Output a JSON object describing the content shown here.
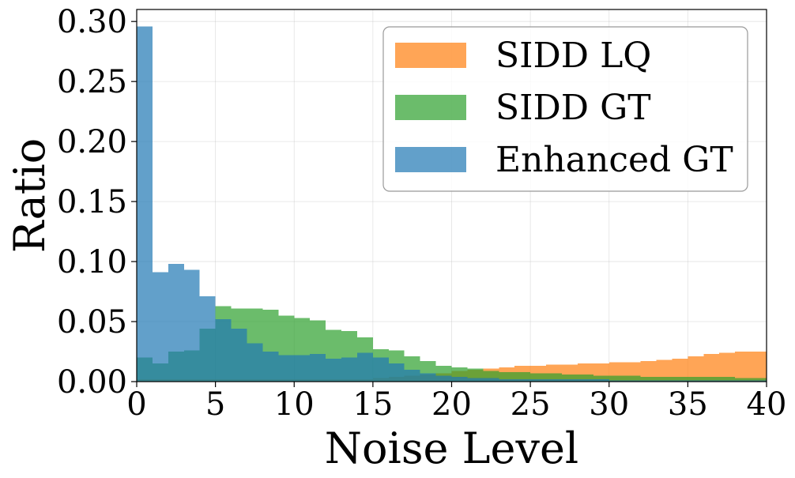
{
  "chart_data": {
    "type": "bar",
    "subtype": "overlapping-histogram",
    "title": "",
    "xlabel": "Noise Level",
    "ylabel": "Ratio",
    "xlim": [
      0,
      40
    ],
    "ylim": [
      0,
      0.31
    ],
    "xticks": [
      0,
      5,
      10,
      15,
      20,
      25,
      30,
      35,
      40
    ],
    "xtick_labels": [
      "0",
      "5",
      "10",
      "15",
      "20",
      "25",
      "30",
      "35",
      "40"
    ],
    "yticks": [
      0.0,
      0.05,
      0.1,
      0.15,
      0.2,
      0.25,
      0.3
    ],
    "ytick_labels": [
      "0.00",
      "0.05",
      "0.10",
      "0.15",
      "0.20",
      "0.25",
      "0.30"
    ],
    "grid": true,
    "legend_position": "top-right",
    "bin_edges": [
      0,
      1,
      2,
      3,
      4,
      5,
      6,
      7,
      8,
      9,
      10,
      11,
      12,
      13,
      14,
      15,
      16,
      17,
      18,
      19,
      20,
      21,
      22,
      23,
      24,
      25,
      26,
      27,
      28,
      29,
      30,
      31,
      32,
      33,
      34,
      35,
      36,
      37,
      38,
      39,
      40
    ],
    "series": [
      {
        "name": "SIDD LQ",
        "color": "#ff7f0e",
        "opacity": 0.7,
        "values": [
          0.002,
          0.002,
          0.002,
          0.002,
          0.002,
          0.002,
          0.002,
          0.002,
          0.002,
          0.002,
          0.002,
          0.002,
          0.002,
          0.002,
          0.002,
          0.003,
          0.004,
          0.005,
          0.006,
          0.007,
          0.009,
          0.01,
          0.011,
          0.012,
          0.013,
          0.013,
          0.014,
          0.014,
          0.015,
          0.015,
          0.016,
          0.016,
          0.017,
          0.018,
          0.019,
          0.021,
          0.023,
          0.024,
          0.025,
          0.025
        ]
      },
      {
        "name": "SIDD GT",
        "color": "#2ca02c",
        "opacity": 0.7,
        "values": [
          0.02,
          0.015,
          0.025,
          0.026,
          0.044,
          0.063,
          0.061,
          0.061,
          0.06,
          0.055,
          0.053,
          0.051,
          0.043,
          0.042,
          0.037,
          0.027,
          0.026,
          0.021,
          0.017,
          0.013,
          0.012,
          0.011,
          0.009,
          0.008,
          0.008,
          0.007,
          0.007,
          0.006,
          0.006,
          0.005,
          0.005,
          0.005,
          0.004,
          0.004,
          0.004,
          0.004,
          0.004,
          0.004,
          0.003,
          0.003
        ]
      },
      {
        "name": "Enhanced GT",
        "color": "#1f77b4",
        "opacity": 0.7,
        "values": [
          0.296,
          0.091,
          0.098,
          0.093,
          0.071,
          0.052,
          0.044,
          0.032,
          0.025,
          0.022,
          0.022,
          0.023,
          0.019,
          0.02,
          0.024,
          0.02,
          0.015,
          0.01,
          0.007,
          0.005,
          0.004,
          0.003,
          0.003,
          0.002,
          0.002,
          0.002,
          0.002,
          0.002,
          0.002,
          0.002,
          0.001,
          0.001,
          0.001,
          0.001,
          0.001,
          0.001,
          0.001,
          0.001,
          0.001,
          0.001
        ]
      }
    ]
  }
}
